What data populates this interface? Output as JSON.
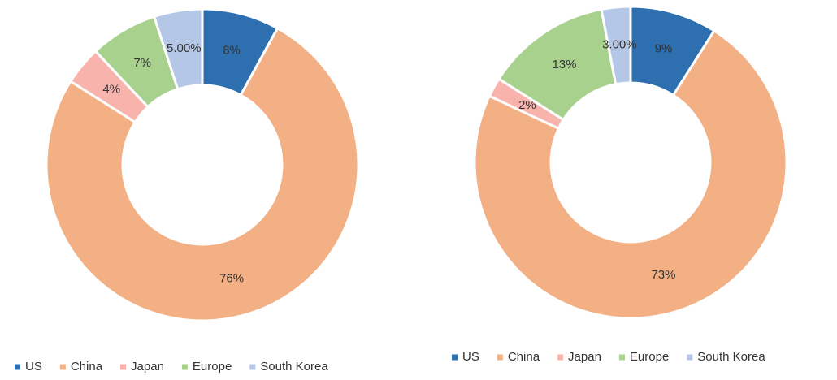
{
  "chart_data": [
    {
      "type": "donut",
      "categories": [
        "US",
        "China",
        "Japan",
        "Europe",
        "South Korea"
      ],
      "values": [
        8,
        76,
        4,
        7,
        5
      ],
      "value_labels": [
        "8%",
        "76%",
        "4%",
        "7%",
        "5.00%"
      ],
      "colors": [
        "#2e6fb0",
        "#f2b084",
        "#f8b3ad",
        "#a9d18e",
        "#b4c7e7"
      ]
    },
    {
      "type": "donut",
      "categories": [
        "US",
        "China",
        "Japan",
        "Europe",
        "South Korea"
      ],
      "values": [
        9,
        73,
        2,
        13,
        3
      ],
      "value_labels": [
        "9%",
        "73%",
        "2%",
        "13%",
        "3.00%"
      ],
      "colors": [
        "#2e6fb0",
        "#f2b084",
        "#f8b3ad",
        "#a9d18e",
        "#b4c7e7"
      ]
    }
  ]
}
